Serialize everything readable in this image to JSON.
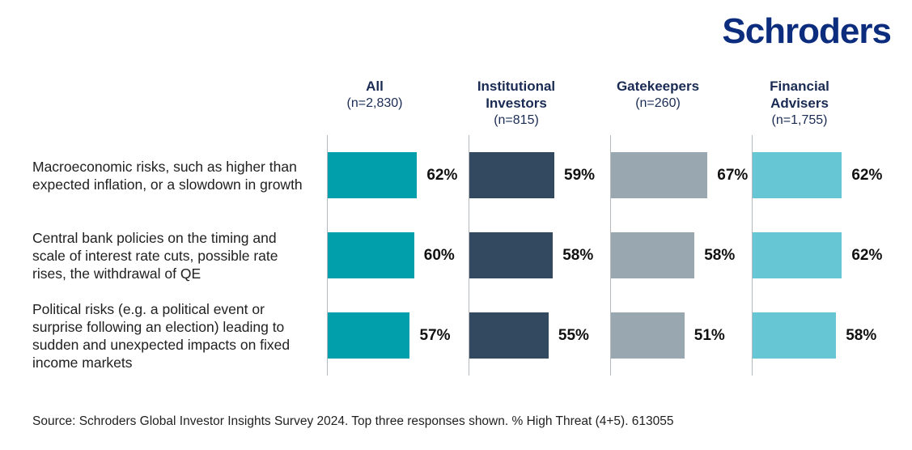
{
  "logo": {
    "text": "Schroders",
    "color": "#0c2d7d"
  },
  "chart_data": {
    "type": "bar",
    "orientation": "horizontal",
    "value_suffix": "%",
    "xlim": [
      0,
      100
    ],
    "grid": false,
    "categories": [
      "Macroeconomic risks, such as higher than expected inflation, or a slowdown in growth",
      "Central bank policies on the timing and scale of interest rate cuts, possible rate rises, the withdrawal of QE",
      "Political risks (e.g. a political event or surprise following an election) leading to sudden and unexpected impacts on fixed income markets"
    ],
    "series": [
      {
        "name": "All",
        "n_label": "(n=2,830)",
        "color": "#009fab",
        "values": [
          62,
          60,
          57
        ]
      },
      {
        "name": "Institutional Investors",
        "n_label": "(n=815)",
        "color": "#33495f",
        "values": [
          59,
          58,
          55
        ]
      },
      {
        "name": "Gatekeepers",
        "n_label": "(n=260)",
        "color": "#99a7b1",
        "values": [
          67,
          58,
          51
        ]
      },
      {
        "name": "Financial Advisers",
        "n_label": "(n=1,755)",
        "color": "#66c6d4",
        "values": [
          62,
          62,
          58
        ]
      }
    ]
  },
  "source": "Source: Schroders Global Investor Insights Survey 2024. Top three responses shown. % High Threat (4+5). 613055"
}
